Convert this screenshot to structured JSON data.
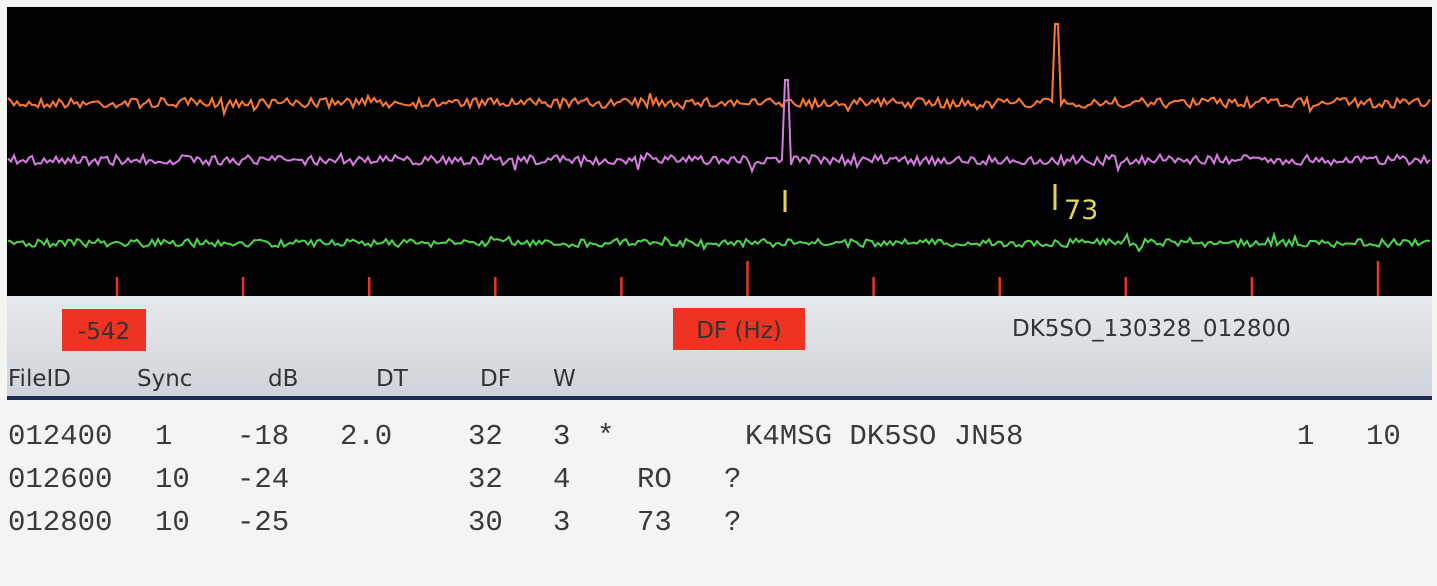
{
  "header": {
    "offset": "-542",
    "axis_label": "DF (Hz)",
    "file_name": "DK5SO_130328_012800"
  },
  "spectrum": {
    "markers": [
      "73"
    ]
  },
  "table": {
    "columns": [
      "FileID",
      "Sync",
      "dB",
      "DT",
      "DF",
      "W"
    ],
    "rows": [
      {
        "file_id": "012400",
        "sync": "1",
        "db": "-18",
        "dt": "2.0",
        "df": "32",
        "w": "3",
        "flag": "*",
        "message": "K4MSG DK5SO JN58",
        "count": "1",
        "extra": "10"
      },
      {
        "file_id": "012600",
        "sync": "10",
        "db": "-24",
        "df": "32",
        "w": "4",
        "shorthand": "RO",
        "quality": "?"
      },
      {
        "file_id": "012800",
        "sync": "10",
        "db": "-25",
        "df": "30",
        "w": "3",
        "shorthand": "73",
        "quality": "?"
      }
    ]
  }
}
